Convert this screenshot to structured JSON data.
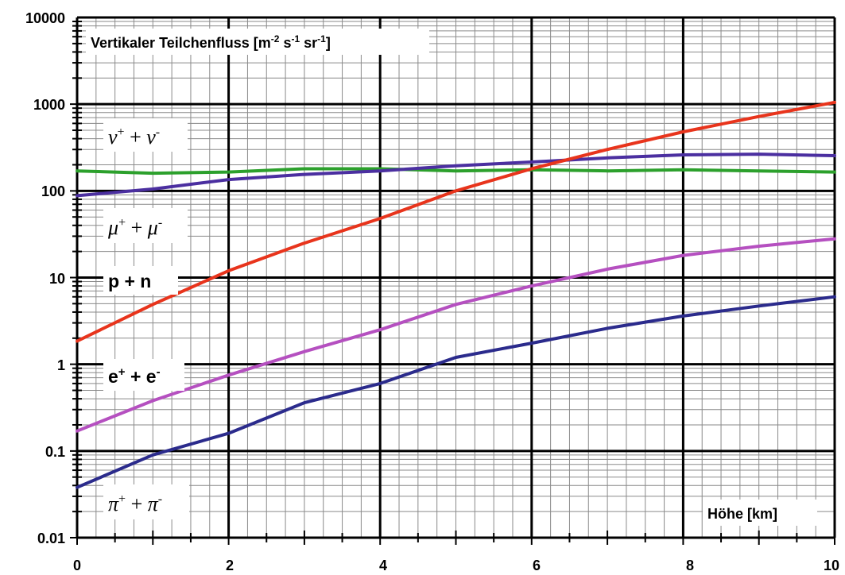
{
  "chart_data": {
    "type": "line",
    "title": "Vertikaler Teilchenfluss [m-2 s-1 sr-1]",
    "title_parts": {
      "prefix": "Vertikaler Teilchenfluss [m",
      "sup1": "-2",
      "mid1": " s",
      "sup2": "-1",
      "mid2": " sr",
      "sup3": "-1",
      "suffix": "]"
    },
    "xlabel": "Höhe [km]",
    "ylabel": "",
    "x_scale": "linear",
    "y_scale": "log",
    "xlim": [
      0,
      10
    ],
    "ylim": [
      0.01,
      10000
    ],
    "x_ticks": [
      "0",
      "2",
      "4",
      "6",
      "8",
      "10"
    ],
    "y_ticks": [
      "0.01",
      "0.1",
      "1",
      "10",
      "100",
      "1000",
      "10000"
    ],
    "grid": true,
    "legend": "none",
    "series": [
      {
        "label_parts": {
          "a": "ν",
          "sa": "+",
          "mid": " + ",
          "b": "ν",
          "sb": "-"
        },
        "color": "#2ca02c",
        "x": [
          0,
          1,
          2,
          3,
          4,
          5,
          6,
          7,
          8,
          9,
          10
        ],
        "y": [
          170,
          160,
          165,
          180,
          180,
          170,
          175,
          170,
          175,
          170,
          165
        ]
      },
      {
        "label_parts": {
          "a": "μ",
          "sa": "+",
          "mid": " + ",
          "b": "μ",
          "sb": "-"
        },
        "color": "#4b2fa0",
        "x": [
          0,
          1,
          2,
          3,
          4,
          5,
          6,
          7,
          8,
          9,
          10
        ],
        "y": [
          88,
          105,
          135,
          155,
          170,
          195,
          215,
          240,
          260,
          265,
          255
        ]
      },
      {
        "label_parts": {
          "a": "p + n",
          "sa": "",
          "mid": "",
          "b": "",
          "sb": ""
        },
        "color": "#e8341c",
        "x": [
          0,
          1,
          2,
          3,
          4,
          5,
          6,
          7,
          8,
          9,
          10
        ],
        "y": [
          1.85,
          4.9,
          12,
          25,
          48,
          100,
          180,
          300,
          480,
          720,
          1050
        ]
      },
      {
        "label_parts": {
          "a": "e",
          "sa": "+",
          "mid": " + ",
          "b": "e",
          "sb": "-"
        },
        "color": "#b550c0",
        "x": [
          0,
          1,
          2,
          3,
          4,
          5,
          6,
          7,
          8,
          9,
          10
        ],
        "y": [
          0.17,
          0.38,
          0.75,
          1.4,
          2.5,
          4.9,
          8,
          12.5,
          18,
          23,
          28
        ]
      },
      {
        "label_parts": {
          "a": "π",
          "sa": "+",
          "mid": " + ",
          "b": "π",
          "sb": "-"
        },
        "color": "#2b2b8c",
        "x": [
          0,
          1,
          2,
          3,
          4,
          5,
          6,
          7,
          8,
          9,
          10
        ],
        "y": [
          0.038,
          0.09,
          0.16,
          0.36,
          0.6,
          1.2,
          1.75,
          2.6,
          3.6,
          4.7,
          6
        ]
      }
    ]
  }
}
